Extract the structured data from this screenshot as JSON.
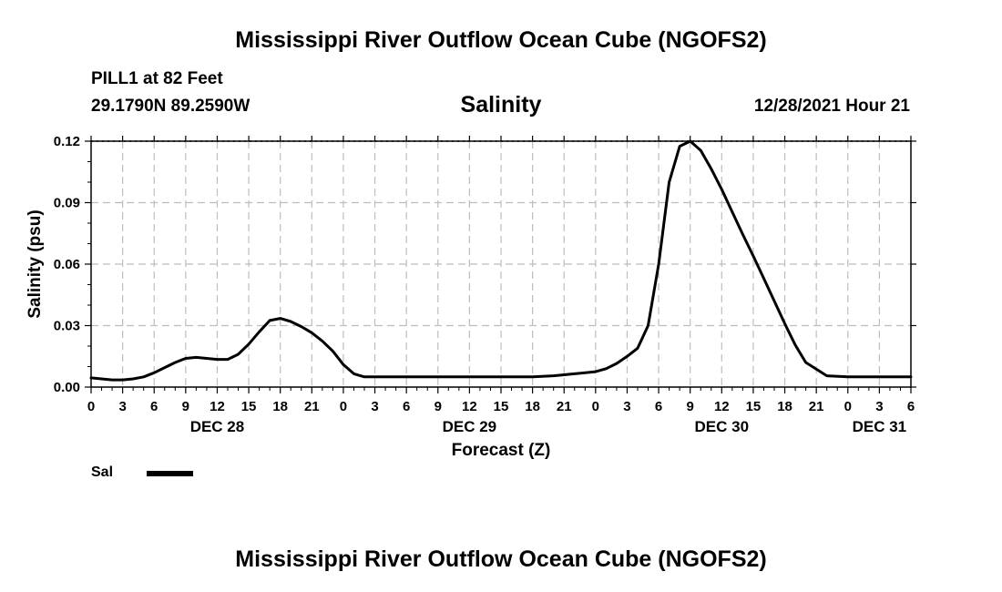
{
  "header": {
    "title": "Mississippi River Outflow Ocean Cube (NGOFS2)",
    "station": "PILL1 at 82 Feet",
    "coordinates": "29.1790N  89.2590W",
    "subtitle": "Salinity",
    "datetime": "12/28/2021 Hour 21"
  },
  "footer": {
    "title": "Mississippi River Outflow Ocean Cube (NGOFS2)"
  },
  "legend": {
    "label": "Sal"
  },
  "chart_data": {
    "type": "line",
    "xlabel": "Forecast (Z)",
    "ylabel": "Salinity (psu)",
    "ylim": [
      0,
      0.12
    ],
    "xlim_hours": [
      0,
      78
    ],
    "x_unit": "hours from 12/28/2021 00Z",
    "grid": true,
    "yticks": [
      "0.00",
      "0.03",
      "0.06",
      "0.09",
      "0.12"
    ],
    "xtick_labels": [
      "0",
      "3",
      "6",
      "9",
      "12",
      "15",
      "18",
      "21",
      "0",
      "3",
      "6",
      "9",
      "12",
      "15",
      "18",
      "21",
      "0",
      "3",
      "6",
      "9",
      "12",
      "15",
      "18",
      "21",
      "0",
      "3",
      "6"
    ],
    "date_labels": [
      {
        "label": "DEC 28",
        "hour": 12
      },
      {
        "label": "DEC 29",
        "hour": 36
      },
      {
        "label": "DEC 30",
        "hour": 60
      },
      {
        "label": "DEC 31",
        "hour": 75
      }
    ],
    "series": [
      {
        "name": "Sal",
        "color": "#000000",
        "x": [
          0,
          1,
          2,
          3,
          4,
          5,
          6,
          7,
          8,
          9,
          10,
          11,
          12,
          13,
          14,
          15,
          16,
          17,
          18,
          19,
          20,
          21,
          22,
          23,
          24,
          25,
          26,
          27,
          30,
          33,
          36,
          39,
          42,
          44,
          46,
          48,
          49,
          50,
          51,
          52,
          53,
          54,
          55,
          56,
          57,
          58,
          59,
          60,
          61,
          62,
          63,
          64,
          65,
          66,
          67,
          68,
          70,
          72,
          74,
          76,
          78
        ],
        "values": [
          0.0045,
          0.004,
          0.0035,
          0.0035,
          0.004,
          0.005,
          0.007,
          0.0095,
          0.012,
          0.014,
          0.0145,
          0.014,
          0.0135,
          0.0135,
          0.016,
          0.021,
          0.027,
          0.0325,
          0.0335,
          0.032,
          0.0295,
          0.0265,
          0.0225,
          0.0175,
          0.011,
          0.0065,
          0.005,
          0.005,
          0.005,
          0.005,
          0.005,
          0.005,
          0.005,
          0.0055,
          0.0065,
          0.0075,
          0.009,
          0.0115,
          0.015,
          0.019,
          0.03,
          0.06,
          0.1,
          0.1175,
          0.12,
          0.1155,
          0.1065,
          0.0965,
          0.0855,
          0.0745,
          0.064,
          0.053,
          0.042,
          0.031,
          0.0205,
          0.012,
          0.0055,
          0.005,
          0.005,
          0.005,
          0.005
        ]
      }
    ]
  }
}
